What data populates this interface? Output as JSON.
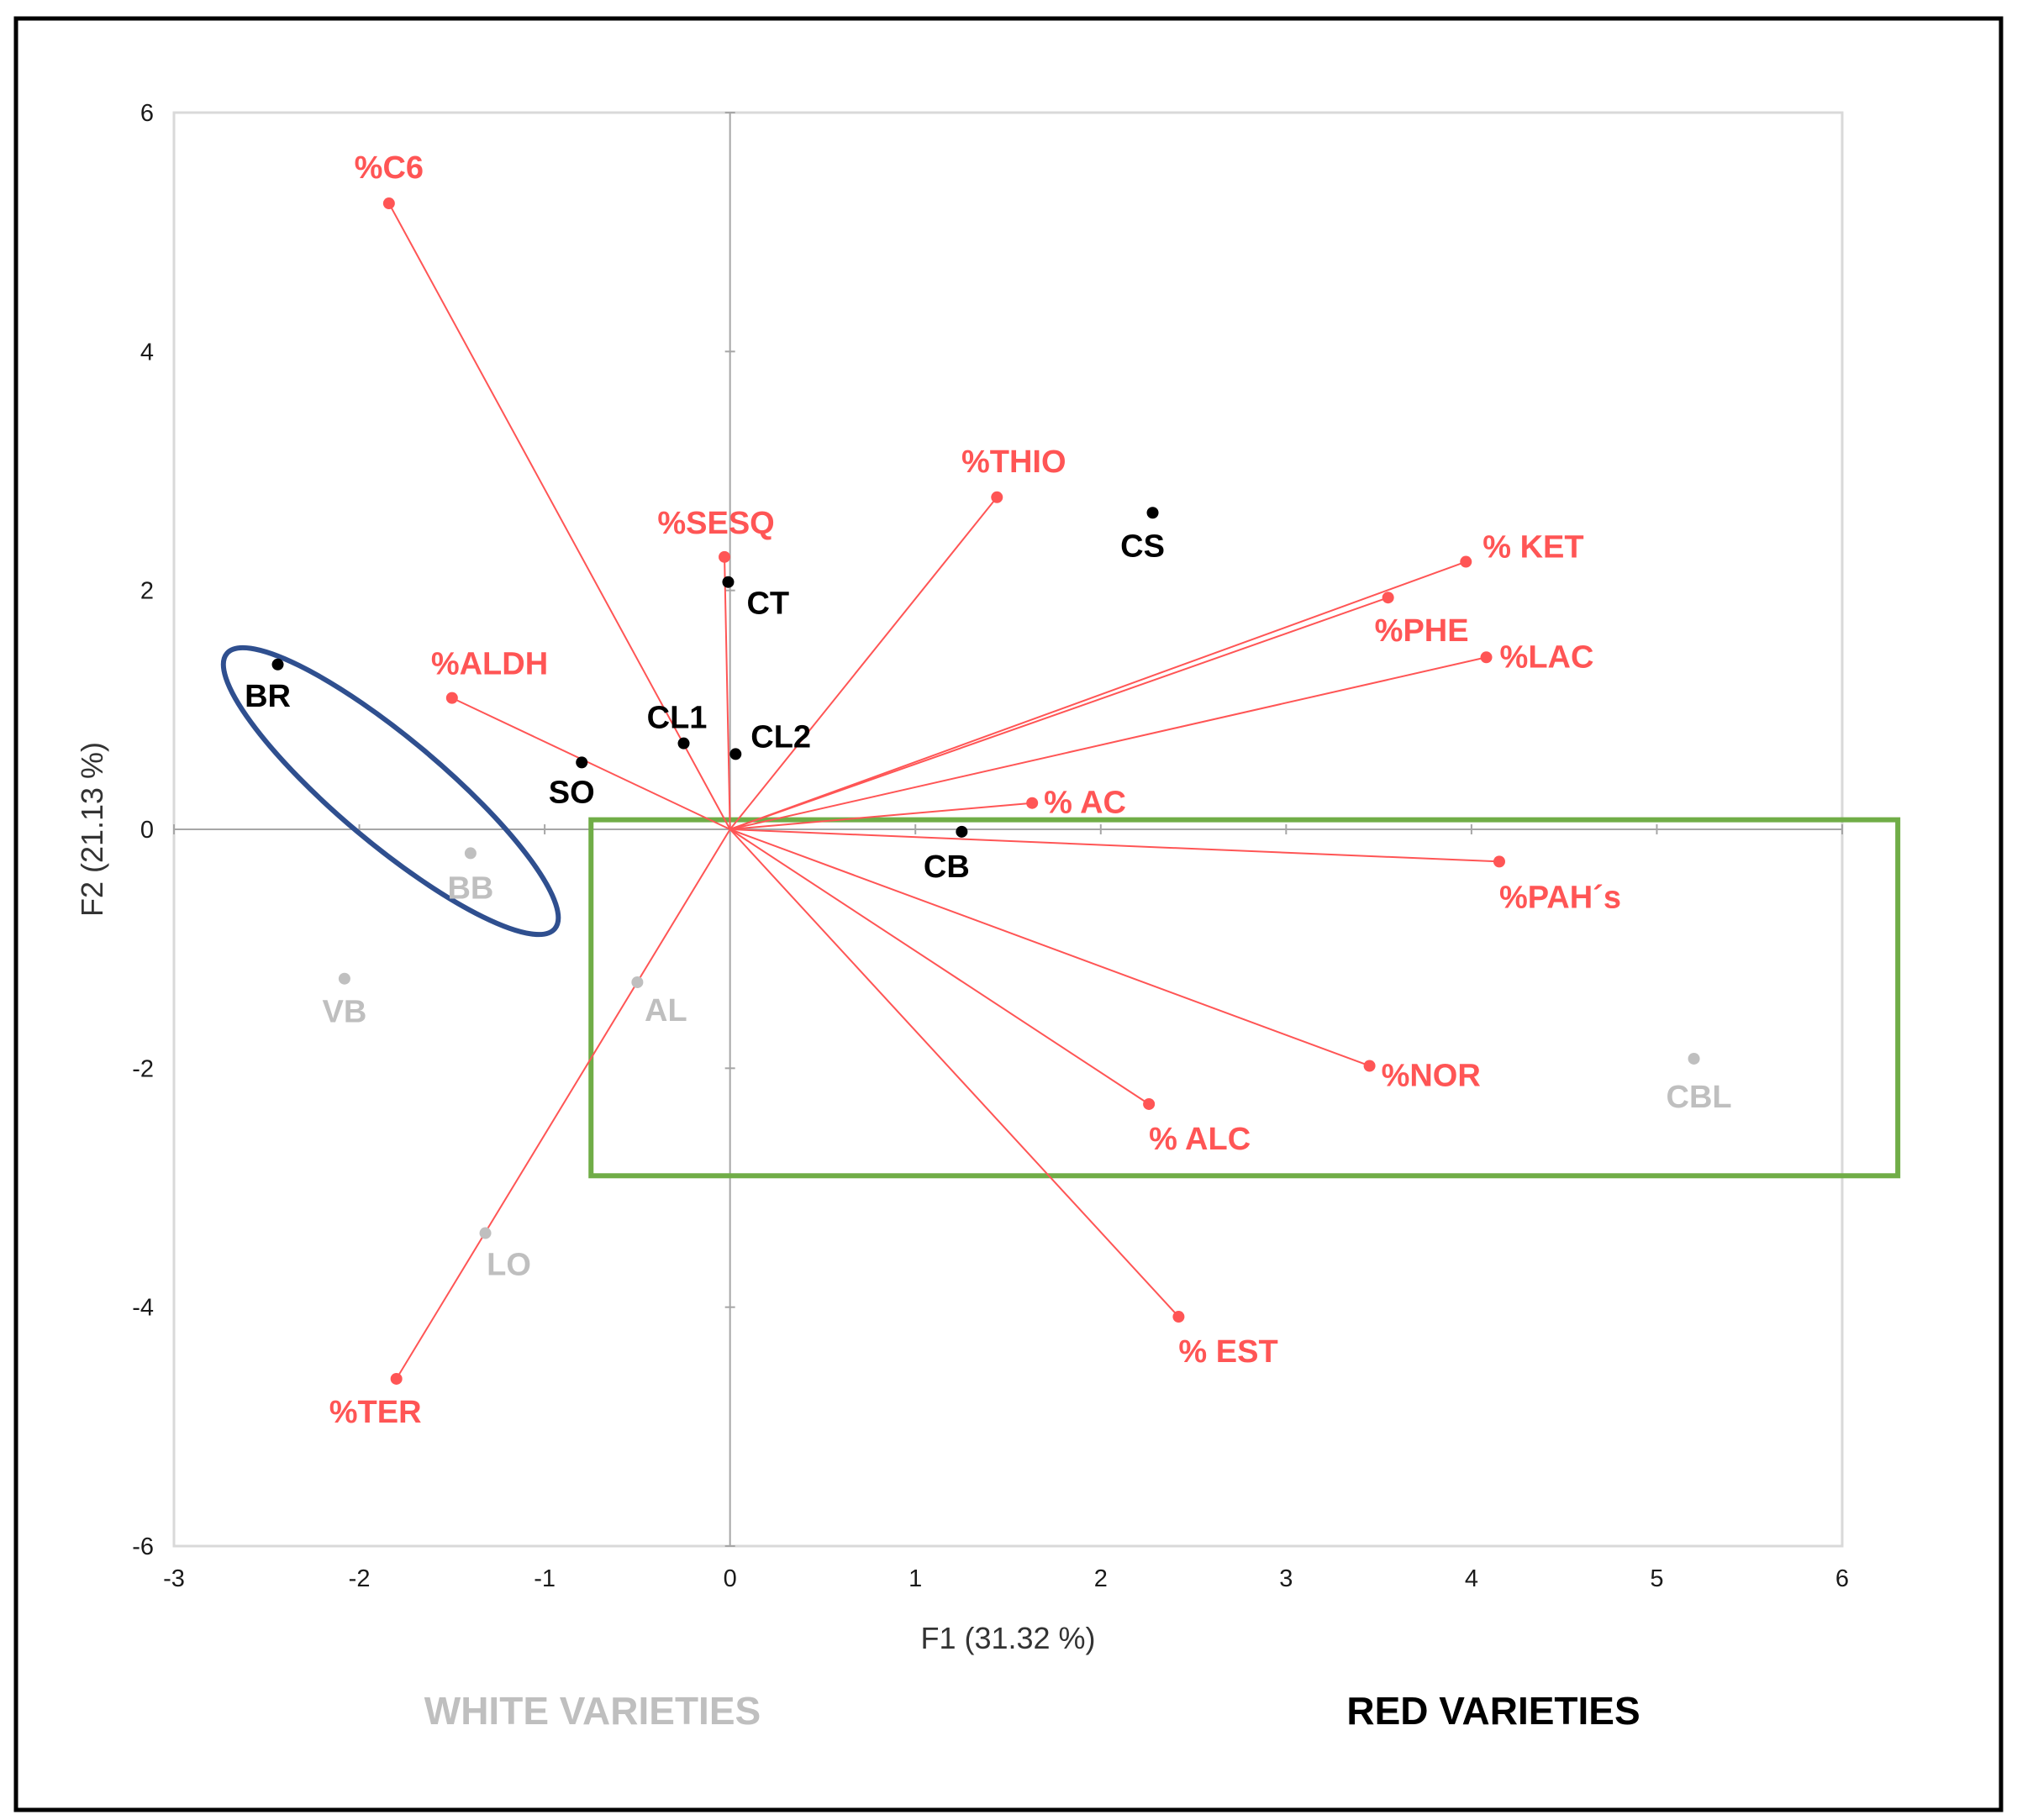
{
  "chart_data": {
    "type": "scatter",
    "subtype": "pca-biplot",
    "xlabel": "F1 (31.32 %)",
    "ylabel": "F2 (21.13 %)",
    "xlim": [
      -3,
      6
    ],
    "ylim": [
      -6,
      6
    ],
    "xticks": [
      "-3",
      "-2",
      "-1",
      "0",
      "1",
      "2",
      "3",
      "4",
      "5",
      "6"
    ],
    "yticks": [
      "-6",
      "-4",
      "-2",
      "0",
      "2",
      "4",
      "6"
    ],
    "grid": false,
    "variables": [
      {
        "label": "%C6",
        "x": -1.84,
        "y": 5.24
      },
      {
        "label": "%THIO",
        "x": 1.44,
        "y": 2.78
      },
      {
        "label": "%SESQ",
        "x": -0.03,
        "y": 2.28
      },
      {
        "label": "% KET",
        "x": 3.97,
        "y": 2.24
      },
      {
        "label": "%PHE",
        "x": 3.55,
        "y": 1.94
      },
      {
        "label": "%LAC",
        "x": 4.08,
        "y": 1.44
      },
      {
        "label": "%ALDH",
        "x": -1.5,
        "y": 1.1
      },
      {
        "label": "% AC",
        "x": 1.63,
        "y": 0.22
      },
      {
        "label": "%PAH´s",
        "x": 4.15,
        "y": -0.27
      },
      {
        "label": "%NOR",
        "x": 3.45,
        "y": -1.98
      },
      {
        "label": "% ALC",
        "x": 2.26,
        "y": -2.3
      },
      {
        "label": "% EST",
        "x": 2.42,
        "y": -4.08
      },
      {
        "label": "%TER",
        "x": -1.8,
        "y": -4.6
      }
    ],
    "observations": [
      {
        "label": "BR",
        "x": -2.44,
        "y": 1.38,
        "group": "red"
      },
      {
        "label": "CT",
        "x": -0.01,
        "y": 2.07,
        "group": "red"
      },
      {
        "label": "CS",
        "x": 2.28,
        "y": 2.65,
        "group": "red"
      },
      {
        "label": "CL1",
        "x": -0.25,
        "y": 0.72,
        "group": "red"
      },
      {
        "label": "CL2",
        "x": 0.03,
        "y": 0.63,
        "group": "red"
      },
      {
        "label": "SO",
        "x": -0.8,
        "y": 0.56,
        "group": "red"
      },
      {
        "label": "CB",
        "x": 1.25,
        "y": -0.02,
        "group": "red"
      },
      {
        "label": "BB",
        "x": -1.4,
        "y": -0.2,
        "group": "white"
      },
      {
        "label": "VB",
        "x": -2.08,
        "y": -1.25,
        "group": "white"
      },
      {
        "label": "AL",
        "x": -0.5,
        "y": -1.28,
        "group": "white"
      },
      {
        "label": "LO",
        "x": -1.32,
        "y": -3.38,
        "group": "white"
      },
      {
        "label": "CBL",
        "x": 5.2,
        "y": -1.92,
        "group": "white"
      }
    ],
    "groups": {
      "white": {
        "title": "WHITE VARIETIES",
        "color": "#bfbfbf"
      },
      "red": {
        "title": "RED VARIETIES",
        "color": "#000000"
      }
    },
    "annotations": [
      {
        "shape": "ellipse",
        "color": "#2f4f8f",
        "center": [
          -1.83,
          0.32
        ],
        "radii": [
          1.05,
          0.4
        ],
        "rotation_deg": -40
      },
      {
        "shape": "rectangle",
        "color": "#70ad47",
        "x_range": [
          -0.75,
          6.3
        ],
        "y_range": [
          -2.9,
          0.08
        ]
      }
    ],
    "colors": {
      "variable": "#ff5555",
      "axis_line": "#a6a6a6",
      "plot_border": "#d9d9d9"
    }
  }
}
